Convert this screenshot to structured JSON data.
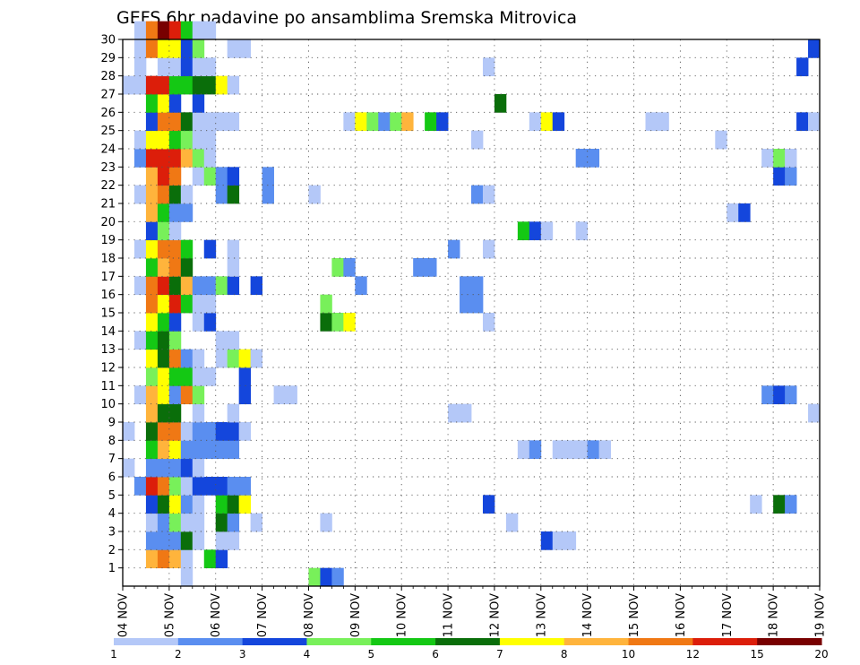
{
  "chart_data": {
    "type": "heatmap",
    "title": "GEFS 6hr padavine po ansamblima Sremska Mitrovica",
    "x_tick_labels": [
      "04 NOV",
      "05 NOV",
      "06 NOV",
      "07 NOV",
      "08 NOV",
      "09 NOV",
      "10 NOV",
      "11 NOV",
      "12 NOV",
      "13 NOV",
      "14 NOV",
      "15 NOV",
      "16 NOV",
      "17 NOV",
      "18 NOV",
      "19 NOV"
    ],
    "y_tick_labels": [
      "1",
      "2",
      "3",
      "4",
      "5",
      "6",
      "7",
      "8",
      "9",
      "10",
      "11",
      "12",
      "13",
      "14",
      "15",
      "16",
      "17",
      "18",
      "19",
      "20",
      "21",
      "22",
      "23",
      "24",
      "25",
      "26",
      "27",
      "28",
      "29",
      "30"
    ],
    "x_range": [
      "04 NOV 00Z",
      "19 NOV 00Z"
    ],
    "time_step_hours": 6,
    "member_range": [
      0,
      30
    ],
    "grid": true,
    "colorbar": {
      "placement": "bottom",
      "labels": [
        "1",
        "2",
        "3",
        "4",
        "5",
        "6",
        "7",
        "8",
        "10",
        "12",
        "15",
        "20"
      ],
      "colors": [
        "#b4c8f8",
        "#5a8ef0",
        "#1446dc",
        "#78f05a",
        "#14c814",
        "#0a6e0a",
        "#ffff00",
        "#ffb43c",
        "#f07814",
        "#dc1e0a",
        "#780000"
      ]
    },
    "cells": {
      "30": [
        [
          1,
          0
        ],
        [
          2,
          8
        ],
        [
          3,
          10
        ],
        [
          4,
          9
        ],
        [
          5,
          4
        ],
        [
          6,
          0
        ],
        [
          7,
          0
        ]
      ],
      "29": [
        [
          1,
          0
        ],
        [
          2,
          8
        ],
        [
          3,
          6
        ],
        [
          4,
          6
        ],
        [
          5,
          2
        ],
        [
          6,
          3
        ],
        [
          9,
          0
        ],
        [
          10,
          0
        ],
        [
          59,
          2
        ]
      ],
      "28": [
        [
          1,
          0
        ],
        [
          3,
          0
        ],
        [
          4,
          0
        ],
        [
          5,
          2
        ],
        [
          6,
          0
        ],
        [
          7,
          0
        ],
        [
          31,
          0
        ],
        [
          58,
          2
        ]
      ],
      "27": [
        [
          0,
          0
        ],
        [
          1,
          0
        ],
        [
          2,
          9
        ],
        [
          3,
          9
        ],
        [
          4,
          4
        ],
        [
          5,
          4
        ],
        [
          6,
          5
        ],
        [
          7,
          5
        ],
        [
          8,
          6
        ],
        [
          9,
          0
        ]
      ],
      "26": [
        [
          2,
          4
        ],
        [
          3,
          6
        ],
        [
          4,
          2
        ],
        [
          6,
          2
        ],
        [
          32,
          5
        ]
      ],
      "25": [
        [
          2,
          2
        ],
        [
          3,
          8
        ],
        [
          4,
          8
        ],
        [
          5,
          5
        ],
        [
          6,
          0
        ],
        [
          7,
          0
        ],
        [
          8,
          0
        ],
        [
          9,
          0
        ],
        [
          19,
          0
        ],
        [
          20,
          6
        ],
        [
          21,
          3
        ],
        [
          22,
          1
        ],
        [
          23,
          3
        ],
        [
          24,
          7
        ],
        [
          26,
          4
        ],
        [
          27,
          2
        ],
        [
          35,
          0
        ],
        [
          36,
          6
        ],
        [
          37,
          2
        ],
        [
          45,
          0
        ],
        [
          46,
          0
        ],
        [
          58,
          2
        ],
        [
          59,
          0
        ]
      ],
      "24": [
        [
          1,
          0
        ],
        [
          2,
          6
        ],
        [
          3,
          6
        ],
        [
          4,
          4
        ],
        [
          5,
          3
        ],
        [
          6,
          0
        ],
        [
          7,
          0
        ],
        [
          30,
          0
        ],
        [
          51,
          0
        ]
      ],
      "23": [
        [
          1,
          1
        ],
        [
          2,
          9
        ],
        [
          3,
          9
        ],
        [
          4,
          9
        ],
        [
          5,
          7
        ],
        [
          6,
          3
        ],
        [
          7,
          0
        ],
        [
          39,
          1
        ],
        [
          40,
          1
        ],
        [
          55,
          0
        ],
        [
          56,
          3
        ],
        [
          57,
          0
        ]
      ],
      "22": [
        [
          2,
          7
        ],
        [
          3,
          9
        ],
        [
          4,
          8
        ],
        [
          6,
          0
        ],
        [
          7,
          3
        ],
        [
          8,
          1
        ],
        [
          9,
          2
        ],
        [
          12,
          1
        ],
        [
          56,
          2
        ],
        [
          57,
          1
        ]
      ],
      "21": [
        [
          1,
          0
        ],
        [
          2,
          7
        ],
        [
          3,
          8
        ],
        [
          4,
          5
        ],
        [
          5,
          0
        ],
        [
          8,
          1
        ],
        [
          9,
          5
        ],
        [
          12,
          1
        ],
        [
          16,
          0
        ],
        [
          30,
          1
        ],
        [
          31,
          0
        ]
      ],
      "20": [
        [
          2,
          7
        ],
        [
          3,
          4
        ],
        [
          4,
          1
        ],
        [
          5,
          1
        ],
        [
          52,
          0
        ],
        [
          53,
          2
        ]
      ],
      "19": [
        [
          2,
          2
        ],
        [
          3,
          3
        ],
        [
          4,
          0
        ],
        [
          34,
          4
        ],
        [
          35,
          2
        ],
        [
          36,
          0
        ],
        [
          39,
          0
        ]
      ],
      "18": [
        [
          1,
          0
        ],
        [
          2,
          6
        ],
        [
          3,
          8
        ],
        [
          4,
          8
        ],
        [
          5,
          4
        ],
        [
          7,
          2
        ],
        [
          9,
          0
        ],
        [
          28,
          1
        ],
        [
          31,
          0
        ]
      ],
      "17": [
        [
          2,
          4
        ],
        [
          3,
          7
        ],
        [
          4,
          8
        ],
        [
          5,
          5
        ],
        [
          9,
          0
        ],
        [
          18,
          3
        ],
        [
          19,
          1
        ],
        [
          25,
          1
        ],
        [
          26,
          1
        ]
      ],
      "16": [
        [
          1,
          0
        ],
        [
          2,
          8
        ],
        [
          3,
          9
        ],
        [
          4,
          5
        ],
        [
          5,
          7
        ],
        [
          6,
          1
        ],
        [
          7,
          1
        ],
        [
          8,
          3
        ],
        [
          9,
          2
        ],
        [
          11,
          2
        ],
        [
          20,
          1
        ],
        [
          29,
          1
        ],
        [
          30,
          1
        ]
      ],
      "15": [
        [
          2,
          8
        ],
        [
          3,
          6
        ],
        [
          4,
          9
        ],
        [
          5,
          4
        ],
        [
          6,
          0
        ],
        [
          7,
          0
        ],
        [
          17,
          3
        ],
        [
          29,
          1
        ],
        [
          30,
          1
        ]
      ],
      "14": [
        [
          2,
          6
        ],
        [
          3,
          4
        ],
        [
          4,
          2
        ],
        [
          6,
          0
        ],
        [
          7,
          2
        ],
        [
          17,
          5
        ],
        [
          18,
          3
        ],
        [
          19,
          6
        ],
        [
          31,
          0
        ]
      ],
      "13": [
        [
          1,
          0
        ],
        [
          2,
          4
        ],
        [
          3,
          5
        ],
        [
          4,
          3
        ],
        [
          8,
          0
        ],
        [
          9,
          0
        ]
      ],
      "12": [
        [
          2,
          6
        ],
        [
          3,
          5
        ],
        [
          4,
          8
        ],
        [
          5,
          1
        ],
        [
          6,
          0
        ],
        [
          8,
          0
        ],
        [
          9,
          3
        ],
        [
          10,
          6
        ],
        [
          11,
          0
        ]
      ],
      "11": [
        [
          2,
          3
        ],
        [
          3,
          6
        ],
        [
          4,
          4
        ],
        [
          5,
          4
        ],
        [
          6,
          0
        ],
        [
          7,
          0
        ],
        [
          10,
          2
        ]
      ],
      "10": [
        [
          1,
          0
        ],
        [
          2,
          7
        ],
        [
          3,
          6
        ],
        [
          4,
          1
        ],
        [
          5,
          8
        ],
        [
          6,
          3
        ],
        [
          10,
          2
        ],
        [
          13,
          0
        ],
        [
          14,
          0
        ],
        [
          55,
          1
        ],
        [
          56,
          2
        ],
        [
          57,
          1
        ]
      ],
      "9": [
        [
          2,
          7
        ],
        [
          3,
          5
        ],
        [
          4,
          5
        ],
        [
          6,
          0
        ],
        [
          9,
          0
        ],
        [
          28,
          0
        ],
        [
          29,
          0
        ],
        [
          59,
          0
        ]
      ],
      "8": [
        [
          0,
          0
        ],
        [
          2,
          5
        ],
        [
          3,
          8
        ],
        [
          4,
          8
        ],
        [
          5,
          0
        ],
        [
          6,
          1
        ],
        [
          7,
          1
        ],
        [
          8,
          2
        ],
        [
          9,
          2
        ],
        [
          10,
          0
        ]
      ],
      "7": [
        [
          2,
          4
        ],
        [
          3,
          7
        ],
        [
          4,
          6
        ],
        [
          5,
          1
        ],
        [
          6,
          1
        ],
        [
          7,
          1
        ],
        [
          8,
          1
        ],
        [
          9,
          1
        ],
        [
          34,
          0
        ],
        [
          35,
          1
        ],
        [
          37,
          0
        ],
        [
          38,
          0
        ],
        [
          39,
          0
        ],
        [
          40,
          1
        ],
        [
          41,
          0
        ]
      ],
      "6": [
        [
          0,
          0
        ],
        [
          2,
          1
        ],
        [
          3,
          1
        ],
        [
          4,
          1
        ],
        [
          5,
          2
        ],
        [
          6,
          0
        ]
      ],
      "5": [
        [
          1,
          1
        ],
        [
          2,
          9
        ],
        [
          3,
          8
        ],
        [
          4,
          3
        ],
        [
          5,
          0
        ],
        [
          6,
          2
        ],
        [
          7,
          2
        ],
        [
          8,
          2
        ],
        [
          9,
          1
        ],
        [
          10,
          1
        ]
      ],
      "4": [
        [
          2,
          2
        ],
        [
          3,
          5
        ],
        [
          4,
          6
        ],
        [
          5,
          1
        ],
        [
          6,
          0
        ],
        [
          8,
          4
        ],
        [
          9,
          5
        ],
        [
          10,
          6
        ],
        [
          31,
          2
        ],
        [
          54,
          0
        ],
        [
          56,
          5
        ],
        [
          57,
          1
        ]
      ],
      "3": [
        [
          2,
          0
        ],
        [
          3,
          1
        ],
        [
          4,
          3
        ],
        [
          5,
          0
        ],
        [
          6,
          0
        ],
        [
          8,
          5
        ],
        [
          9,
          1
        ],
        [
          11,
          0
        ],
        [
          17,
          0
        ],
        [
          33,
          0
        ]
      ],
      "2": [
        [
          2,
          1
        ],
        [
          3,
          1
        ],
        [
          4,
          1
        ],
        [
          5,
          5
        ],
        [
          6,
          0
        ],
        [
          8,
          0
        ],
        [
          9,
          0
        ],
        [
          36,
          2
        ],
        [
          37,
          0
        ],
        [
          38,
          0
        ]
      ],
      "1": [
        [
          2,
          7
        ],
        [
          3,
          8
        ],
        [
          4,
          7
        ],
        [
          5,
          0
        ],
        [
          7,
          4
        ],
        [
          8,
          2
        ]
      ],
      "0": [
        [
          5,
          0
        ],
        [
          16,
          3
        ],
        [
          17,
          2
        ],
        [
          18,
          1
        ]
      ]
    }
  }
}
